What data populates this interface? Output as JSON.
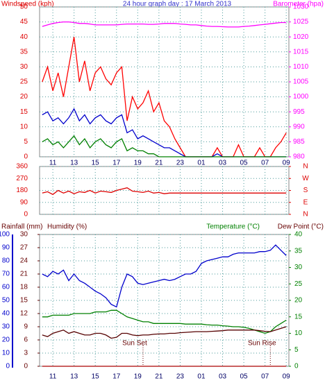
{
  "chart_data": [
    {
      "type": "line",
      "title": "24 hour graph day : 17 March 2013",
      "ylabel": "Windspeed (kph)",
      "y2label": "Barometer (hpa)",
      "x": [
        10,
        10.5,
        11,
        11.5,
        12,
        12.5,
        13,
        13.5,
        14,
        14.5,
        15,
        15.5,
        16,
        16.5,
        17,
        17.5,
        18,
        18.5,
        19,
        19.5,
        20,
        20.5,
        21,
        21.5,
        22,
        22.5,
        23,
        23.5,
        24,
        24.5,
        25,
        25.5,
        26,
        26.5,
        27,
        27.5,
        28,
        28.5,
        29,
        29.5,
        30,
        30.5,
        31,
        31.5,
        32,
        32.5,
        33
      ],
      "xlim": [
        9.75,
        33.25
      ],
      "xticks": [
        11,
        13,
        15,
        17,
        19,
        21,
        23,
        {
          "value": 25,
          "label": "01"
        },
        {
          "value": 27,
          "label": "03"
        },
        {
          "value": 29,
          "label": "05"
        },
        {
          "value": 31,
          "label": "07"
        },
        {
          "value": 33,
          "label": "09"
        }
      ],
      "ylim": [
        0,
        50
      ],
      "yticks": [
        0,
        5,
        10,
        15,
        20,
        25,
        30,
        35,
        40,
        45,
        50
      ],
      "y2lim": [
        980,
        1030
      ],
      "y2ticks": [
        980,
        985,
        990,
        995,
        1000,
        1005,
        1010,
        1015,
        1020,
        1025,
        1030
      ],
      "grid": true,
      "series": [
        {
          "color": "#ff0000",
          "values": [
            25,
            30,
            22,
            28,
            20,
            30,
            40,
            25,
            32,
            22,
            28,
            30,
            26,
            24,
            28,
            30,
            12,
            20,
            16,
            18,
            22,
            15,
            18,
            12,
            10,
            6,
            3,
            0,
            0,
            0,
            0,
            0,
            0,
            3,
            0,
            0,
            0,
            4,
            0,
            0,
            0,
            3,
            0,
            0,
            3,
            5,
            8
          ]
        },
        {
          "color": "#0000cc",
          "values": [
            14,
            15,
            12,
            13,
            11,
            13,
            16,
            12,
            14,
            11,
            13,
            14,
            12,
            11,
            13,
            14,
            8,
            9,
            6,
            7,
            6,
            5,
            4,
            3,
            3,
            2,
            1,
            0,
            0,
            0,
            0,
            0,
            0,
            1,
            0,
            0,
            0,
            0,
            0,
            0,
            0,
            0,
            0,
            0,
            0,
            0,
            0
          ]
        },
        {
          "color": "#008000",
          "values": [
            5,
            6,
            4,
            5,
            3,
            5,
            7,
            4,
            6,
            3,
            5,
            6,
            4,
            3,
            5,
            6,
            2,
            3,
            2,
            2,
            1,
            1,
            0,
            0,
            0,
            0,
            0,
            0,
            0,
            0,
            0,
            0,
            0,
            0,
            0,
            0,
            0,
            0,
            0,
            0,
            0,
            0,
            0,
            0,
            0,
            0,
            0
          ]
        },
        {
          "color": "#ff00ff",
          "axis": "y2",
          "values": [
            1023.5,
            1024,
            1024.5,
            1024.8,
            1025,
            1025,
            1024.8,
            1024.5,
            1024.5,
            1024.3,
            1024,
            1024,
            1024,
            1024,
            1024,
            1024.2,
            1024.3,
            1024.3,
            1024.3,
            1024.3,
            1024.2,
            1024.2,
            1024.3,
            1024.5,
            1024.5,
            1024.5,
            1024.3,
            1024.2,
            1024,
            1024,
            1023.8,
            1023.6,
            1023.5,
            1023.5,
            1023.4,
            1023.3,
            1023.3,
            1023.3,
            1023.5,
            1023.6,
            1023.8,
            1024,
            1024.2,
            1024.4,
            1024.6,
            1024.8,
            1024.8
          ]
        }
      ]
    },
    {
      "type": "line",
      "x": [
        10,
        10.5,
        11,
        11.5,
        12,
        12.5,
        13,
        13.5,
        14,
        14.5,
        15,
        15.5,
        16,
        16.5,
        17,
        17.5,
        18,
        18.5,
        19,
        19.5,
        20,
        20.5,
        21,
        21.5,
        22,
        22.5,
        23,
        23.5,
        24,
        24.5,
        25,
        25.5,
        26,
        26.5,
        27,
        27.5,
        28,
        28.5,
        29,
        29.5,
        30,
        30.5,
        31,
        31.5,
        32,
        32.5,
        33
      ],
      "xlim": [
        9.75,
        33.25
      ],
      "xticks": [
        11,
        13,
        15,
        17,
        19,
        21,
        23,
        25,
        27,
        29,
        31,
        33
      ],
      "ylim": [
        0,
        360
      ],
      "yticks": [
        0,
        90,
        180,
        270,
        360
      ],
      "y2lim": [
        0,
        360
      ],
      "y2ticks": [
        {
          "value": 360,
          "label": "N"
        },
        {
          "value": 270,
          "label": "W"
        },
        {
          "value": 180,
          "label": "S"
        },
        {
          "value": 90,
          "label": "E"
        },
        {
          "value": 0,
          "label": "N"
        }
      ],
      "grid": true,
      "series": [
        {
          "color": "#dd0000",
          "values": [
            160,
            170,
            150,
            180,
            160,
            175,
            155,
            170,
            165,
            180,
            160,
            175,
            170,
            165,
            180,
            190,
            200,
            175,
            170,
            165,
            175,
            160,
            165,
            155,
            160,
            160,
            160,
            160,
            160,
            160,
            160,
            160,
            160,
            160,
            160,
            160,
            160,
            160,
            160,
            160,
            160,
            160,
            160,
            160,
            160,
            160,
            160
          ]
        }
      ]
    },
    {
      "type": "line",
      "ylabel": "Rainfall (mm)",
      "y3label": "Humidity (%)",
      "y2label": "Temperature (°C)",
      "y2label2": "Dew Point (°C)",
      "x": [
        10,
        10.5,
        11,
        11.5,
        12,
        12.5,
        13,
        13.5,
        14,
        14.5,
        15,
        15.5,
        16,
        16.5,
        17,
        17.5,
        18,
        18.5,
        19,
        19.5,
        20,
        20.5,
        21,
        21.5,
        22,
        22.5,
        23,
        23.5,
        24,
        24.5,
        25,
        25.5,
        26,
        26.5,
        27,
        27.5,
        28,
        28.5,
        29,
        29.5,
        30,
        30.5,
        31,
        31.5,
        32,
        32.5,
        33
      ],
      "xlim": [
        9.75,
        33.25
      ],
      "xticks": [
        11,
        13,
        15,
        17,
        19,
        21,
        23,
        {
          "value": 25,
          "label": "01"
        },
        {
          "value": 27,
          "label": "03"
        },
        {
          "value": 29,
          "label": "05"
        },
        {
          "value": 31,
          "label": "07"
        },
        {
          "value": 33,
          "label": "09"
        }
      ],
      "ylim": [
        0,
        100
      ],
      "yticks": [
        0,
        10,
        20,
        30,
        40,
        50,
        60,
        70,
        80,
        90,
        100
      ],
      "y3lim": [
        0,
        30
      ],
      "y3ticks": [
        0,
        3,
        6,
        9,
        12,
        15,
        18,
        21,
        24,
        27,
        30
      ],
      "y2lim": [
        0,
        40
      ],
      "y2ticks": [
        0,
        5,
        10,
        15,
        20,
        25,
        30,
        35,
        40
      ],
      "grid": true,
      "series": [
        {
          "color": "#0000cc",
          "values": [
            70,
            68,
            72,
            70,
            73,
            65,
            70,
            65,
            63,
            60,
            57,
            55,
            52,
            47,
            45,
            60,
            70,
            68,
            63,
            62,
            63,
            64,
            65,
            66,
            65,
            66,
            68,
            70,
            70,
            72,
            78,
            80,
            81,
            82,
            83,
            83,
            85,
            86,
            86,
            86,
            86,
            87,
            87,
            88,
            92,
            88,
            84
          ]
        },
        {
          "color": "#008000",
          "axis": "y2",
          "values": [
            15,
            15,
            15.5,
            15.5,
            15.5,
            15.5,
            16,
            16,
            16,
            16,
            16.5,
            16.5,
            16.5,
            17,
            17,
            16,
            15,
            14.5,
            14,
            13.5,
            13.5,
            13,
            13,
            13,
            13,
            13,
            13,
            12.8,
            12.8,
            12.8,
            12.8,
            12.6,
            12.5,
            12.5,
            12.3,
            12.2,
            12,
            12,
            11.8,
            11.5,
            11,
            10.5,
            10,
            10.5,
            12,
            13,
            14
          ]
        },
        {
          "color": "#550000",
          "axis": "y2",
          "values": [
            9.5,
            9,
            10,
            10.5,
            11,
            10,
            10.5,
            10,
            9.5,
            9.5,
            10,
            10,
            9.5,
            8.5,
            8.8,
            10,
            10,
            9.5,
            9.3,
            9.5,
            9.5,
            9.7,
            9.8,
            9.8,
            10,
            10,
            10.2,
            10.3,
            10.4,
            10.5,
            10.5,
            10.5,
            10.6,
            10.7,
            10.8,
            11,
            11,
            11,
            11,
            11,
            11,
            10.8,
            10.6,
            10.5,
            11,
            11.5,
            12
          ]
        },
        {
          "color": "#aa0000",
          "values": [
            0,
            0,
            0,
            0,
            0,
            0,
            0,
            0,
            0,
            0,
            0,
            0,
            0,
            0,
            0,
            0,
            0,
            0,
            0,
            0,
            0,
            0,
            0,
            0,
            0,
            0,
            0,
            0,
            0,
            0,
            0,
            0,
            0,
            0,
            0,
            0,
            0,
            0,
            0,
            0,
            0,
            0,
            0,
            0,
            0,
            0,
            0
          ]
        }
      ],
      "annotations": [
        {
          "text": "Sun Set",
          "x": 19.5
        },
        {
          "text": "Sun Rise",
          "x": 31.5
        }
      ]
    }
  ]
}
